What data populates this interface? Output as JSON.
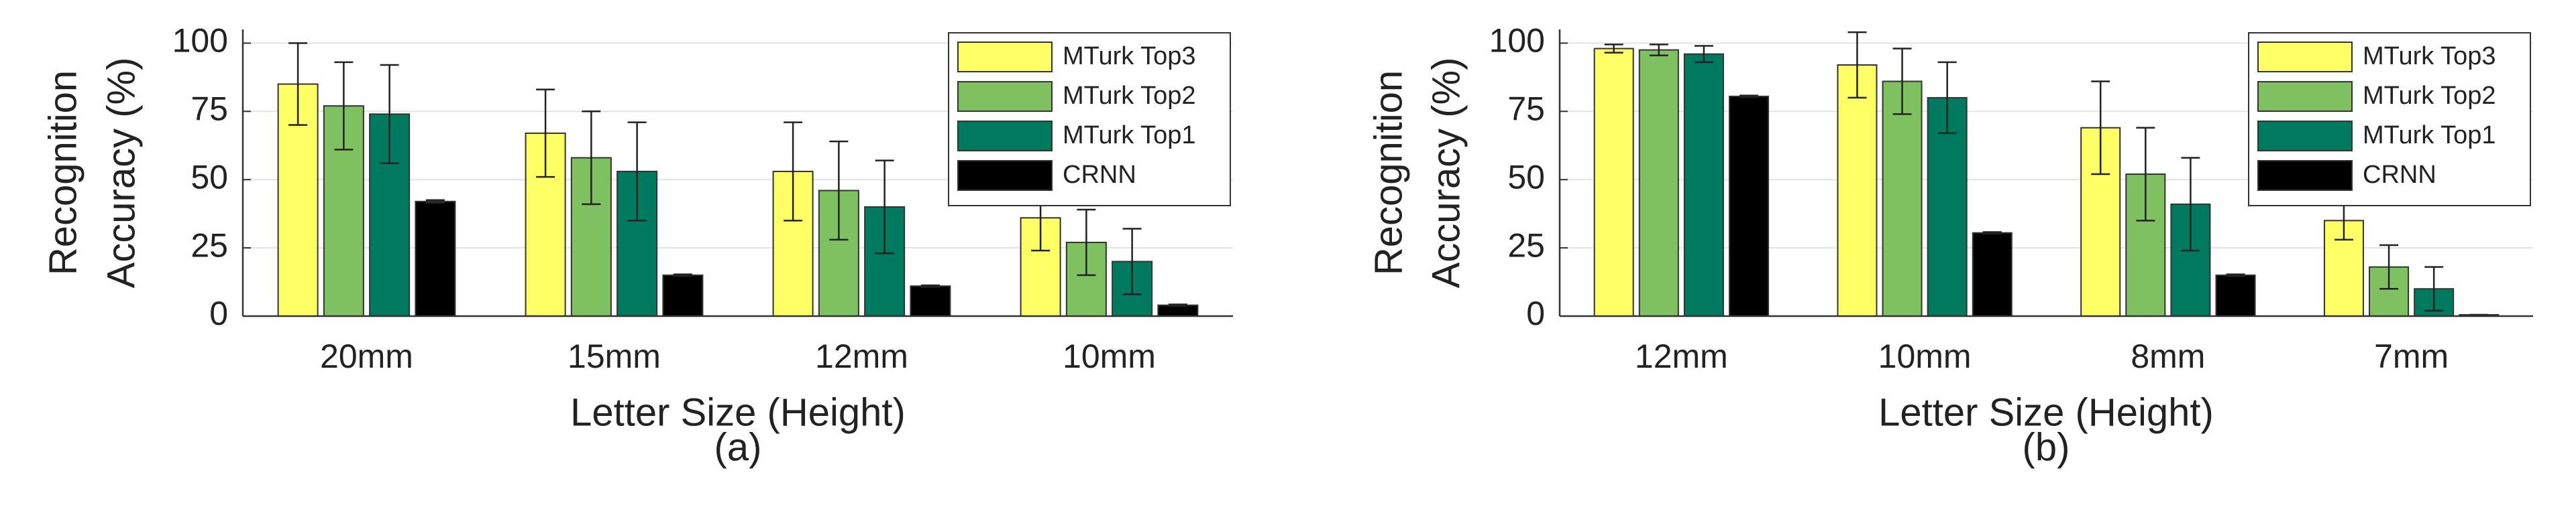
{
  "chart_data": [
    {
      "type": "bar",
      "caption": "(a)",
      "xlabel": "Letter Size (Height)",
      "ylabel": [
        "Recognition",
        "Accuracy (%)"
      ],
      "categories": [
        "20mm",
        "15mm",
        "12mm",
        "10mm"
      ],
      "series": [
        {
          "name": "MTurk Top3",
          "color": "#ffff66",
          "values": [
            85,
            67,
            53,
            36
          ],
          "errors": [
            15,
            16,
            18,
            12
          ]
        },
        {
          "name": "MTurk Top2",
          "color": "#7fc060",
          "values": [
            77,
            58,
            46,
            27
          ],
          "errors": [
            16,
            17,
            18,
            12
          ]
        },
        {
          "name": "MTurk Top1",
          "color": "#007a5e",
          "values": [
            74,
            53,
            40,
            20
          ],
          "errors": [
            18,
            18,
            17,
            12
          ]
        },
        {
          "name": "CRNN",
          "color": "#000000",
          "values": [
            42,
            15,
            11,
            4
          ],
          "errors": [
            0.5,
            0.3,
            0.3,
            0.3
          ]
        }
      ],
      "ylim": [
        0,
        105
      ],
      "yticks": [
        0,
        25,
        50,
        75,
        100
      ],
      "grid": true,
      "legend": "upper right"
    },
    {
      "type": "bar",
      "caption": "(b)",
      "xlabel": "Letter Size (Height)",
      "ylabel": [
        "Recognition",
        "Accuracy (%)"
      ],
      "categories": [
        "12mm",
        "10mm",
        "8mm",
        "7mm"
      ],
      "series": [
        {
          "name": "MTurk Top3",
          "color": "#ffff66",
          "values": [
            98,
            92,
            69,
            35
          ],
          "errors": [
            1.5,
            12,
            17,
            7
          ]
        },
        {
          "name": "MTurk Top2",
          "color": "#7fc060",
          "values": [
            97.5,
            86,
            52,
            18
          ],
          "errors": [
            2,
            12,
            17,
            8
          ]
        },
        {
          "name": "MTurk Top1",
          "color": "#007a5e",
          "values": [
            96,
            80,
            41,
            10
          ],
          "errors": [
            3,
            13,
            17,
            8
          ]
        },
        {
          "name": "CRNN",
          "color": "#000000",
          "values": [
            80.5,
            30.5,
            15,
            0.5
          ],
          "errors": [
            0.3,
            0.3,
            0.3,
            0
          ]
        }
      ],
      "ylim": [
        0,
        105
      ],
      "yticks": [
        0,
        25,
        50,
        75,
        100
      ],
      "grid": true,
      "legend": "upper right"
    }
  ]
}
